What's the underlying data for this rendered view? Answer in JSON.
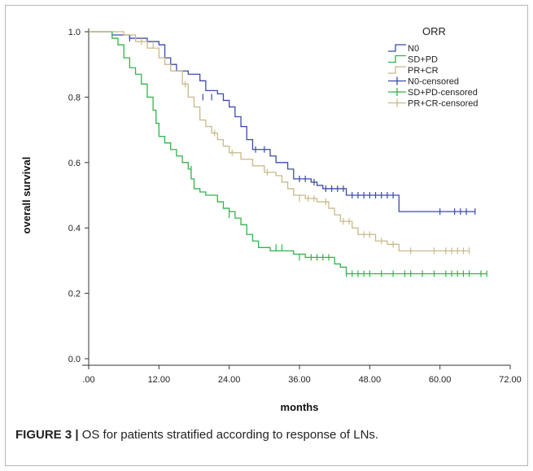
{
  "caption": {
    "label": "FIGURE 3 |",
    "text": " OS for patients stratified according to response of LNs."
  },
  "chart_data": {
    "type": "line",
    "subtype": "kaplan-meier step",
    "xlabel": "months",
    "ylabel": "overall survival",
    "xlim": [
      0,
      72
    ],
    "ylim": [
      0,
      1.0
    ],
    "x_ticks": [
      0,
      12,
      24,
      36,
      48,
      60,
      72
    ],
    "x_tick_labels": [
      ".00",
      "12.00",
      "24.00",
      "36.00",
      "48.00",
      "60.00",
      "72.00"
    ],
    "y_ticks": [
      0,
      0.2,
      0.4,
      0.6,
      0.8,
      1.0
    ],
    "y_tick_labels": [
      "0.0",
      "0.2",
      "0.4",
      "0.6",
      "0.8",
      "1.0"
    ],
    "grid": false,
    "legend": {
      "title": "ORR",
      "placement": "top-right",
      "entries": [
        "N0",
        "SD+PD",
        "PR+CR",
        "N0-censored",
        "SD+PD-censored",
        "PR+CR-censored"
      ]
    },
    "series": [
      {
        "name": "N0",
        "color": "#3b4ba8",
        "steps": [
          [
            0,
            1.0
          ],
          [
            4,
            0.99
          ],
          [
            7,
            0.98
          ],
          [
            10,
            0.97
          ],
          [
            12,
            0.96
          ],
          [
            13,
            0.92
          ],
          [
            14,
            0.9
          ],
          [
            15,
            0.88
          ],
          [
            17,
            0.87
          ],
          [
            19,
            0.85
          ],
          [
            20,
            0.82
          ],
          [
            22,
            0.81
          ],
          [
            23,
            0.79
          ],
          [
            24,
            0.77
          ],
          [
            25,
            0.74
          ],
          [
            26,
            0.71
          ],
          [
            27,
            0.67
          ],
          [
            28,
            0.64
          ],
          [
            31,
            0.62
          ],
          [
            32,
            0.6
          ],
          [
            34,
            0.58
          ],
          [
            35,
            0.55
          ],
          [
            38,
            0.54
          ],
          [
            39,
            0.53
          ],
          [
            40,
            0.52
          ],
          [
            44,
            0.5
          ],
          [
            52,
            0.5
          ],
          [
            53,
            0.45
          ],
          [
            66,
            0.45
          ]
        ],
        "censored": [
          [
            7,
            0.98
          ],
          [
            19.5,
            0.8
          ],
          [
            21,
            0.8
          ],
          [
            28.5,
            0.64
          ],
          [
            30,
            0.64
          ],
          [
            36,
            0.55
          ],
          [
            37,
            0.55
          ],
          [
            38.5,
            0.54
          ],
          [
            40.5,
            0.52
          ],
          [
            41.5,
            0.52
          ],
          [
            42.5,
            0.52
          ],
          [
            43.5,
            0.52
          ],
          [
            45,
            0.5
          ],
          [
            46,
            0.5
          ],
          [
            47,
            0.5
          ],
          [
            48,
            0.5
          ],
          [
            49,
            0.5
          ],
          [
            50,
            0.5
          ],
          [
            51,
            0.5
          ],
          [
            52,
            0.5
          ],
          [
            60,
            0.45
          ],
          [
            62.5,
            0.45
          ],
          [
            63.5,
            0.45
          ],
          [
            64.5,
            0.45
          ],
          [
            66,
            0.45
          ]
        ]
      },
      {
        "name": "SD+PD",
        "color": "#33b34a",
        "steps": [
          [
            0,
            1.0
          ],
          [
            4,
            0.98
          ],
          [
            5,
            0.96
          ],
          [
            6,
            0.92
          ],
          [
            7,
            0.89
          ],
          [
            8,
            0.87
          ],
          [
            9,
            0.84
          ],
          [
            10,
            0.8
          ],
          [
            11,
            0.76
          ],
          [
            11.5,
            0.72
          ],
          [
            12,
            0.68
          ],
          [
            13,
            0.66
          ],
          [
            14,
            0.64
          ],
          [
            15,
            0.62
          ],
          [
            16,
            0.6
          ],
          [
            17,
            0.58
          ],
          [
            17.5,
            0.55
          ],
          [
            18,
            0.52
          ],
          [
            19,
            0.51
          ],
          [
            20,
            0.5
          ],
          [
            22,
            0.48
          ],
          [
            23,
            0.46
          ],
          [
            24,
            0.45
          ],
          [
            25,
            0.43
          ],
          [
            26,
            0.41
          ],
          [
            27,
            0.38
          ],
          [
            28,
            0.36
          ],
          [
            29,
            0.34
          ],
          [
            31,
            0.33
          ],
          [
            35,
            0.32
          ],
          [
            37,
            0.31
          ],
          [
            42,
            0.29
          ],
          [
            43,
            0.28
          ],
          [
            44,
            0.26
          ],
          [
            68,
            0.26
          ]
        ],
        "censored": [
          [
            17.5,
            0.58
          ],
          [
            24,
            0.44
          ],
          [
            32,
            0.34
          ],
          [
            33,
            0.34
          ],
          [
            36,
            0.31
          ],
          [
            38,
            0.31
          ],
          [
            39,
            0.31
          ],
          [
            40,
            0.31
          ],
          [
            41,
            0.31
          ],
          [
            44,
            0.26
          ],
          [
            45,
            0.26
          ],
          [
            46,
            0.26
          ],
          [
            47,
            0.26
          ],
          [
            48,
            0.26
          ],
          [
            50,
            0.26
          ],
          [
            52,
            0.26
          ],
          [
            54,
            0.26
          ],
          [
            55,
            0.26
          ],
          [
            57,
            0.26
          ],
          [
            59,
            0.26
          ],
          [
            61,
            0.26
          ],
          [
            62,
            0.26
          ],
          [
            63,
            0.26
          ],
          [
            64,
            0.26
          ],
          [
            65,
            0.26
          ],
          [
            67,
            0.26
          ],
          [
            68,
            0.26
          ]
        ]
      },
      {
        "name": "PR+CR",
        "color": "#c9b98a",
        "steps": [
          [
            0,
            1.0
          ],
          [
            6,
            0.99
          ],
          [
            8,
            0.97
          ],
          [
            10,
            0.95
          ],
          [
            12,
            0.92
          ],
          [
            13,
            0.9
          ],
          [
            14,
            0.88
          ],
          [
            16,
            0.84
          ],
          [
            17,
            0.8
          ],
          [
            18,
            0.77
          ],
          [
            19,
            0.73
          ],
          [
            20,
            0.71
          ],
          [
            21,
            0.69
          ],
          [
            22,
            0.67
          ],
          [
            23,
            0.65
          ],
          [
            24,
            0.63
          ],
          [
            26,
            0.61
          ],
          [
            28,
            0.59
          ],
          [
            30,
            0.57
          ],
          [
            32,
            0.56
          ],
          [
            33,
            0.54
          ],
          [
            34,
            0.52
          ],
          [
            35,
            0.5
          ],
          [
            37,
            0.49
          ],
          [
            39,
            0.48
          ],
          [
            41,
            0.46
          ],
          [
            42,
            0.44
          ],
          [
            43,
            0.42
          ],
          [
            45,
            0.4
          ],
          [
            46,
            0.38
          ],
          [
            49,
            0.36
          ],
          [
            51,
            0.35
          ],
          [
            53,
            0.33
          ],
          [
            65,
            0.33
          ]
        ],
        "censored": [
          [
            9,
            0.97
          ],
          [
            11,
            0.96
          ],
          [
            16.5,
            0.84
          ],
          [
            21.5,
            0.69
          ],
          [
            24.5,
            0.63
          ],
          [
            30.5,
            0.57
          ],
          [
            36,
            0.49
          ],
          [
            37.5,
            0.49
          ],
          [
            38.5,
            0.49
          ],
          [
            40.5,
            0.48
          ],
          [
            43.5,
            0.42
          ],
          [
            44.5,
            0.42
          ],
          [
            47,
            0.38
          ],
          [
            48,
            0.38
          ],
          [
            50,
            0.36
          ],
          [
            52,
            0.35
          ],
          [
            55,
            0.33
          ],
          [
            59,
            0.33
          ],
          [
            61,
            0.33
          ],
          [
            62,
            0.33
          ],
          [
            63,
            0.33
          ],
          [
            64,
            0.33
          ],
          [
            65,
            0.33
          ]
        ]
      }
    ]
  }
}
